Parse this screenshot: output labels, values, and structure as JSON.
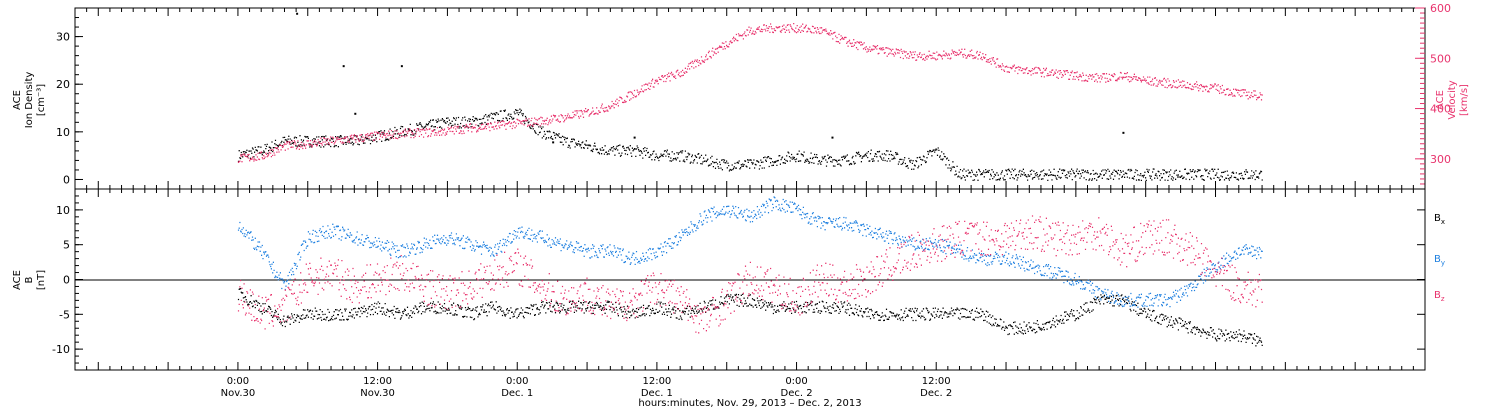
{
  "colors": {
    "black": "#000000",
    "pink": "#e8336d",
    "blue": "#1f80e0"
  },
  "chart_data": [
    {
      "type": "scatter",
      "panel": "top",
      "ylabel_left": [
        "ACE",
        "Ion Density",
        "[cm⁻³]"
      ],
      "ylabel_right": [
        "ACE",
        "Velocity",
        "[km/s]"
      ],
      "ylim_left": [
        -2,
        36
      ],
      "ylim_right": [
        240,
        600
      ],
      "yticks_left": [
        "0",
        "10",
        "20",
        "30"
      ],
      "yticks_right": [
        "300",
        "400",
        "500",
        "600"
      ],
      "series": [
        {
          "axis": "left",
          "color": "black",
          "x": [
            0,
            2,
            4,
            6,
            8,
            10,
            12,
            14,
            16,
            18,
            20,
            22,
            24,
            26,
            28,
            30,
            32,
            34,
            36,
            38,
            40,
            42,
            44,
            46,
            48,
            50,
            52,
            54,
            56,
            58,
            60,
            62,
            64,
            66,
            68,
            70,
            72,
            74,
            76,
            78,
            80,
            82,
            84,
            86,
            88
          ],
          "y": [
            5,
            6,
            8,
            8,
            8,
            8,
            9,
            10,
            11,
            12,
            12,
            13,
            14,
            10,
            8,
            7,
            6,
            6,
            5,
            5,
            4,
            3,
            3,
            4,
            5,
            4,
            4,
            5,
            5,
            3,
            6,
            1,
            1,
            1,
            1,
            1,
            1,
            1,
            1,
            1,
            1,
            1,
            1,
            1,
            1
          ],
          "spikes": [
            [
              5,
              35
            ],
            [
              9,
              24
            ],
            [
              10,
              14
            ],
            [
              14,
              24
            ],
            [
              27,
              8
            ],
            [
              34,
              9
            ],
            [
              51,
              9
            ],
            [
              76,
              10
            ]
          ]
        },
        {
          "axis": "right",
          "color": "pink",
          "x": [
            0,
            2,
            4,
            6,
            8,
            10,
            12,
            14,
            16,
            18,
            20,
            22,
            24,
            26,
            28,
            30,
            32,
            34,
            36,
            38,
            40,
            42,
            44,
            46,
            48,
            50,
            52,
            54,
            56,
            58,
            60,
            62,
            64,
            66,
            68,
            70,
            72,
            74,
            76,
            78,
            80,
            82,
            84,
            86,
            88
          ],
          "y": [
            300,
            305,
            325,
            330,
            335,
            340,
            345,
            350,
            352,
            355,
            362,
            365,
            370,
            375,
            382,
            392,
            405,
            430,
            455,
            470,
            500,
            530,
            555,
            560,
            560,
            555,
            535,
            520,
            512,
            505,
            505,
            510,
            505,
            480,
            475,
            470,
            465,
            460,
            465,
            455,
            450,
            445,
            440,
            430,
            425
          ]
        }
      ]
    },
    {
      "type": "scatter",
      "panel": "bottom",
      "ylabel_left": [
        "ACE",
        "B",
        "[nT]"
      ],
      "ylim": [
        -13,
        13
      ],
      "yticks": [
        "-10",
        "-5",
        "0",
        "5",
        "10"
      ],
      "legend": [
        "Bx",
        "By",
        "Bz"
      ],
      "series": [
        {
          "name": "Bx",
          "color": "black",
          "x": [
            0,
            2,
            4,
            6,
            8,
            10,
            12,
            14,
            16,
            18,
            20,
            22,
            24,
            26,
            28,
            30,
            32,
            34,
            36,
            38,
            40,
            42,
            44,
            46,
            48,
            50,
            52,
            54,
            56,
            58,
            60,
            62,
            64,
            66,
            68,
            70,
            72,
            74,
            76,
            78,
            80,
            82,
            84,
            86,
            88
          ],
          "y": [
            -2,
            -4,
            -6,
            -5,
            -5,
            -5,
            -4,
            -5,
            -4,
            -4,
            -5,
            -4,
            -5,
            -4,
            -4,
            -4,
            -4,
            -5,
            -4,
            -5,
            -4,
            -3,
            -3,
            -4,
            -4,
            -4,
            -4,
            -5,
            -5,
            -5,
            -5,
            -5,
            -5,
            -7,
            -7,
            -6,
            -5,
            -3,
            -3,
            -5,
            -6,
            -7,
            -8,
            -8,
            -9
          ]
        },
        {
          "name": "By",
          "color": "blue",
          "x": [
            0,
            2,
            4,
            6,
            8,
            10,
            12,
            14,
            16,
            18,
            20,
            22,
            24,
            26,
            28,
            30,
            32,
            34,
            36,
            38,
            40,
            42,
            44,
            46,
            48,
            50,
            52,
            54,
            56,
            58,
            60,
            62,
            64,
            66,
            68,
            70,
            72,
            74,
            76,
            78,
            80,
            82,
            84,
            86,
            88
          ],
          "y": [
            8,
            4,
            -1,
            6,
            7,
            6,
            5,
            4,
            5,
            6,
            5,
            4,
            7,
            6,
            5,
            4,
            4,
            3,
            4,
            6,
            9,
            10,
            9,
            11,
            10,
            8,
            8,
            7,
            6,
            5,
            5,
            4,
            3,
            3,
            2,
            1,
            0,
            -2,
            -3,
            -3,
            -3,
            -1,
            2,
            4,
            4
          ]
        },
        {
          "name": "Bz",
          "color": "pink",
          "x": [
            0,
            2,
            4,
            6,
            8,
            10,
            12,
            14,
            16,
            18,
            20,
            22,
            24,
            26,
            28,
            30,
            32,
            34,
            36,
            38,
            40,
            42,
            44,
            46,
            48,
            50,
            52,
            54,
            56,
            58,
            60,
            62,
            64,
            66,
            68,
            70,
            72,
            74,
            76,
            78,
            80,
            82,
            84,
            86,
            88
          ],
          "y": [
            -2,
            -5,
            -4,
            0,
            1,
            -1,
            0,
            1,
            -1,
            -2,
            -1,
            1,
            2,
            -1,
            -3,
            -2,
            -4,
            -3,
            -1,
            -3,
            -6,
            -3,
            0,
            -1,
            -3,
            0,
            -1,
            0,
            2,
            4,
            5,
            6,
            6,
            6,
            7,
            6,
            6,
            7,
            4,
            6,
            6,
            4,
            1,
            -1,
            -2
          ]
        }
      ]
    }
  ],
  "x_axis": {
    "xlim": [
      -14,
      102
    ],
    "ticks": [
      {
        "x": 0,
        "top": "0:00",
        "bottom": "Nov.30"
      },
      {
        "x": 12,
        "top": "12:00",
        "bottom": "Nov.30"
      },
      {
        "x": 24,
        "top": "0:00",
        "bottom": "Dec. 1"
      },
      {
        "x": 36,
        "top": "12:00",
        "bottom": "Dec. 1"
      },
      {
        "x": 48,
        "top": "0:00",
        "bottom": "Dec. 2"
      },
      {
        "x": 60,
        "top": "12:00",
        "bottom": "Dec. 2"
      }
    ],
    "title": "hours:minutes, Nov. 29, 2013 – Dec. 2, 2013"
  }
}
